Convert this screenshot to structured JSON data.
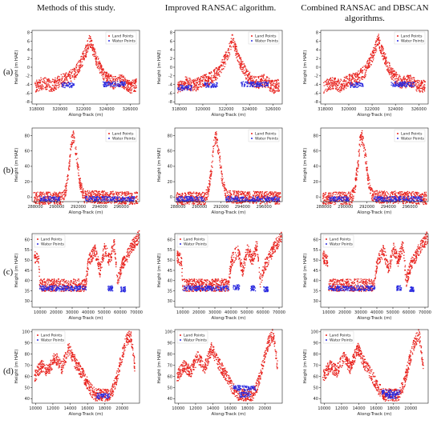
{
  "columns": [
    "Methods of this study.",
    "Improved RANSAC algorithm.",
    "Combined RANSAC and DBSCAN algorithms."
  ],
  "rows": [
    "(a)",
    "(b)",
    "(c)",
    "(d)"
  ],
  "colors": {
    "land": "#e8231e",
    "water": "#2b2bdf"
  },
  "chart_data": [
    {
      "row": "(a)",
      "type": "scatter",
      "xlabel": "Along-Track (m)",
      "ylabel": "Height (m HAE)",
      "xlim": [
        317600,
        326800
      ],
      "ylim": [
        -8.5,
        8.5
      ],
      "xticks": [
        318000,
        320000,
        322000,
        324000,
        326000
      ],
      "yticks": [
        -8,
        -6,
        -4,
        -2,
        0,
        2,
        4,
        6,
        8
      ],
      "legend": {
        "position": "top-right",
        "entries": [
          "Land Points",
          "Water Points"
        ]
      },
      "land_profile": {
        "x": [
          317800,
          318500,
          319200,
          320000,
          320600,
          321300,
          321800,
          322200,
          322500,
          322800,
          323200,
          323800,
          324500,
          325200,
          326000,
          326500
        ],
        "y": [
          -4.5,
          -3.5,
          -4.2,
          -3,
          -2.5,
          -1,
          1.5,
          4,
          6.5,
          4,
          1,
          -2,
          -3.5,
          -3,
          -4.5,
          -4
        ]
      },
      "water_segments": {
        "methods": [
          [
            320100,
            321200,
            -4
          ],
          [
            323600,
            325600,
            -3.8
          ]
        ],
        "ransac": [
          [
            317800,
            319000,
            -4.6
          ],
          [
            320100,
            321200,
            -4
          ],
          [
            323200,
            325600,
            -3.8
          ]
        ],
        "dbscan": [
          [
            320100,
            321200,
            -4
          ],
          [
            323600,
            325600,
            -3.8
          ]
        ]
      }
    },
    {
      "row": "(b)",
      "type": "scatter",
      "xlabel": "Along-Track (m)",
      "ylabel": "Height (m HAE)",
      "xlim": [
        287700,
        297700
      ],
      "ylim": [
        -6,
        90
      ],
      "xticks": [
        288000,
        290000,
        292000,
        294000,
        296000
      ],
      "yticks": [
        0,
        20,
        40,
        60,
        80
      ],
      "legend": {
        "position": "top-right",
        "entries": [
          "Land Points",
          "Water Points"
        ]
      },
      "land_profile": {
        "x": [
          287800,
          290500,
          290800,
          291100,
          291300,
          291500,
          291800,
          292100,
          292500,
          297500
        ],
        "y": [
          -1,
          -1,
          10,
          40,
          72,
          80,
          55,
          20,
          1,
          -1
        ]
      },
      "water_segments": {
        "methods": [
          [
            288400,
            290300,
            -2
          ],
          [
            292600,
            297200,
            -2
          ]
        ],
        "ransac": [
          [
            287800,
            290400,
            -2
          ],
          [
            292400,
            297400,
            -2
          ]
        ],
        "dbscan": [
          [
            288400,
            290300,
            -2
          ],
          [
            292600,
            297200,
            -2
          ]
        ]
      }
    },
    {
      "row": "(c)",
      "type": "scatter",
      "xlabel": "Along-Track (m)",
      "ylabel": "Height (m HAE)",
      "xlim": [
        5000,
        72000
      ],
      "ylim": [
        27,
        63
      ],
      "xticks": [
        10000,
        20000,
        30000,
        40000,
        50000,
        60000,
        70000
      ],
      "yticks": [
        30,
        35,
        40,
        45,
        50,
        55,
        60
      ],
      "legend": {
        "position": "top-left",
        "entries": [
          "Land Points",
          "Water Points"
        ]
      },
      "land_profile": {
        "x": [
          6000,
          9000,
          9500,
          38000,
          40000,
          44000,
          47000,
          50000,
          53000,
          56000,
          58000,
          61000,
          64000,
          67000,
          70000,
          71500
        ],
        "y": [
          52,
          50,
          38,
          38,
          50,
          55,
          45,
          56,
          50,
          58,
          40,
          48,
          52,
          57,
          60,
          62
        ]
      },
      "water_segments": {
        "methods": [
          [
            9500,
            38500,
            36.5
          ],
          [
            52000,
            55000,
            36.5
          ],
          [
            60000,
            63000,
            36
          ]
        ],
        "ransac": [
          [
            9500,
            38500,
            36.5
          ],
          [
            41000,
            45000,
            37
          ],
          [
            52000,
            55000,
            36.5
          ],
          [
            60000,
            63000,
            36
          ]
        ],
        "dbscan": [
          [
            9500,
            38500,
            36.5
          ],
          [
            52000,
            55000,
            36.5
          ],
          [
            60000,
            63000,
            36
          ]
        ]
      }
    },
    {
      "row": "(d)",
      "type": "scatter",
      "xlabel": "Along-Track (m)",
      "ylabel": "Height (m HAE)",
      "xlim": [
        9600,
        22000
      ],
      "ylim": [
        36,
        102
      ],
      "xticks": [
        10000,
        12000,
        14000,
        16000,
        18000,
        20000
      ],
      "yticks": [
        40,
        50,
        60,
        70,
        80,
        90,
        100
      ],
      "legend": {
        "position": "top-left",
        "entries": [
          "Land Points",
          "Water Points"
        ]
      },
      "land_profile": {
        "x": [
          9800,
          10600,
          11400,
          12200,
          13000,
          13800,
          14600,
          15400,
          16200,
          16800,
          18600,
          19200,
          19800,
          20400,
          20900,
          21400
        ],
        "y": [
          60,
          70,
          65,
          78,
          68,
          86,
          72,
          62,
          50,
          44,
          44,
          55,
          75,
          92,
          98,
          70
        ]
      },
      "water_segments": {
        "methods": [
          [
            16900,
            18500,
            43
          ]
        ],
        "ransac": [
          [
            16300,
            18900,
            50
          ],
          [
            17000,
            18300,
            44
          ]
        ],
        "dbscan": [
          [
            16600,
            18700,
            46
          ],
          [
            17000,
            18300,
            43
          ]
        ]
      }
    }
  ]
}
